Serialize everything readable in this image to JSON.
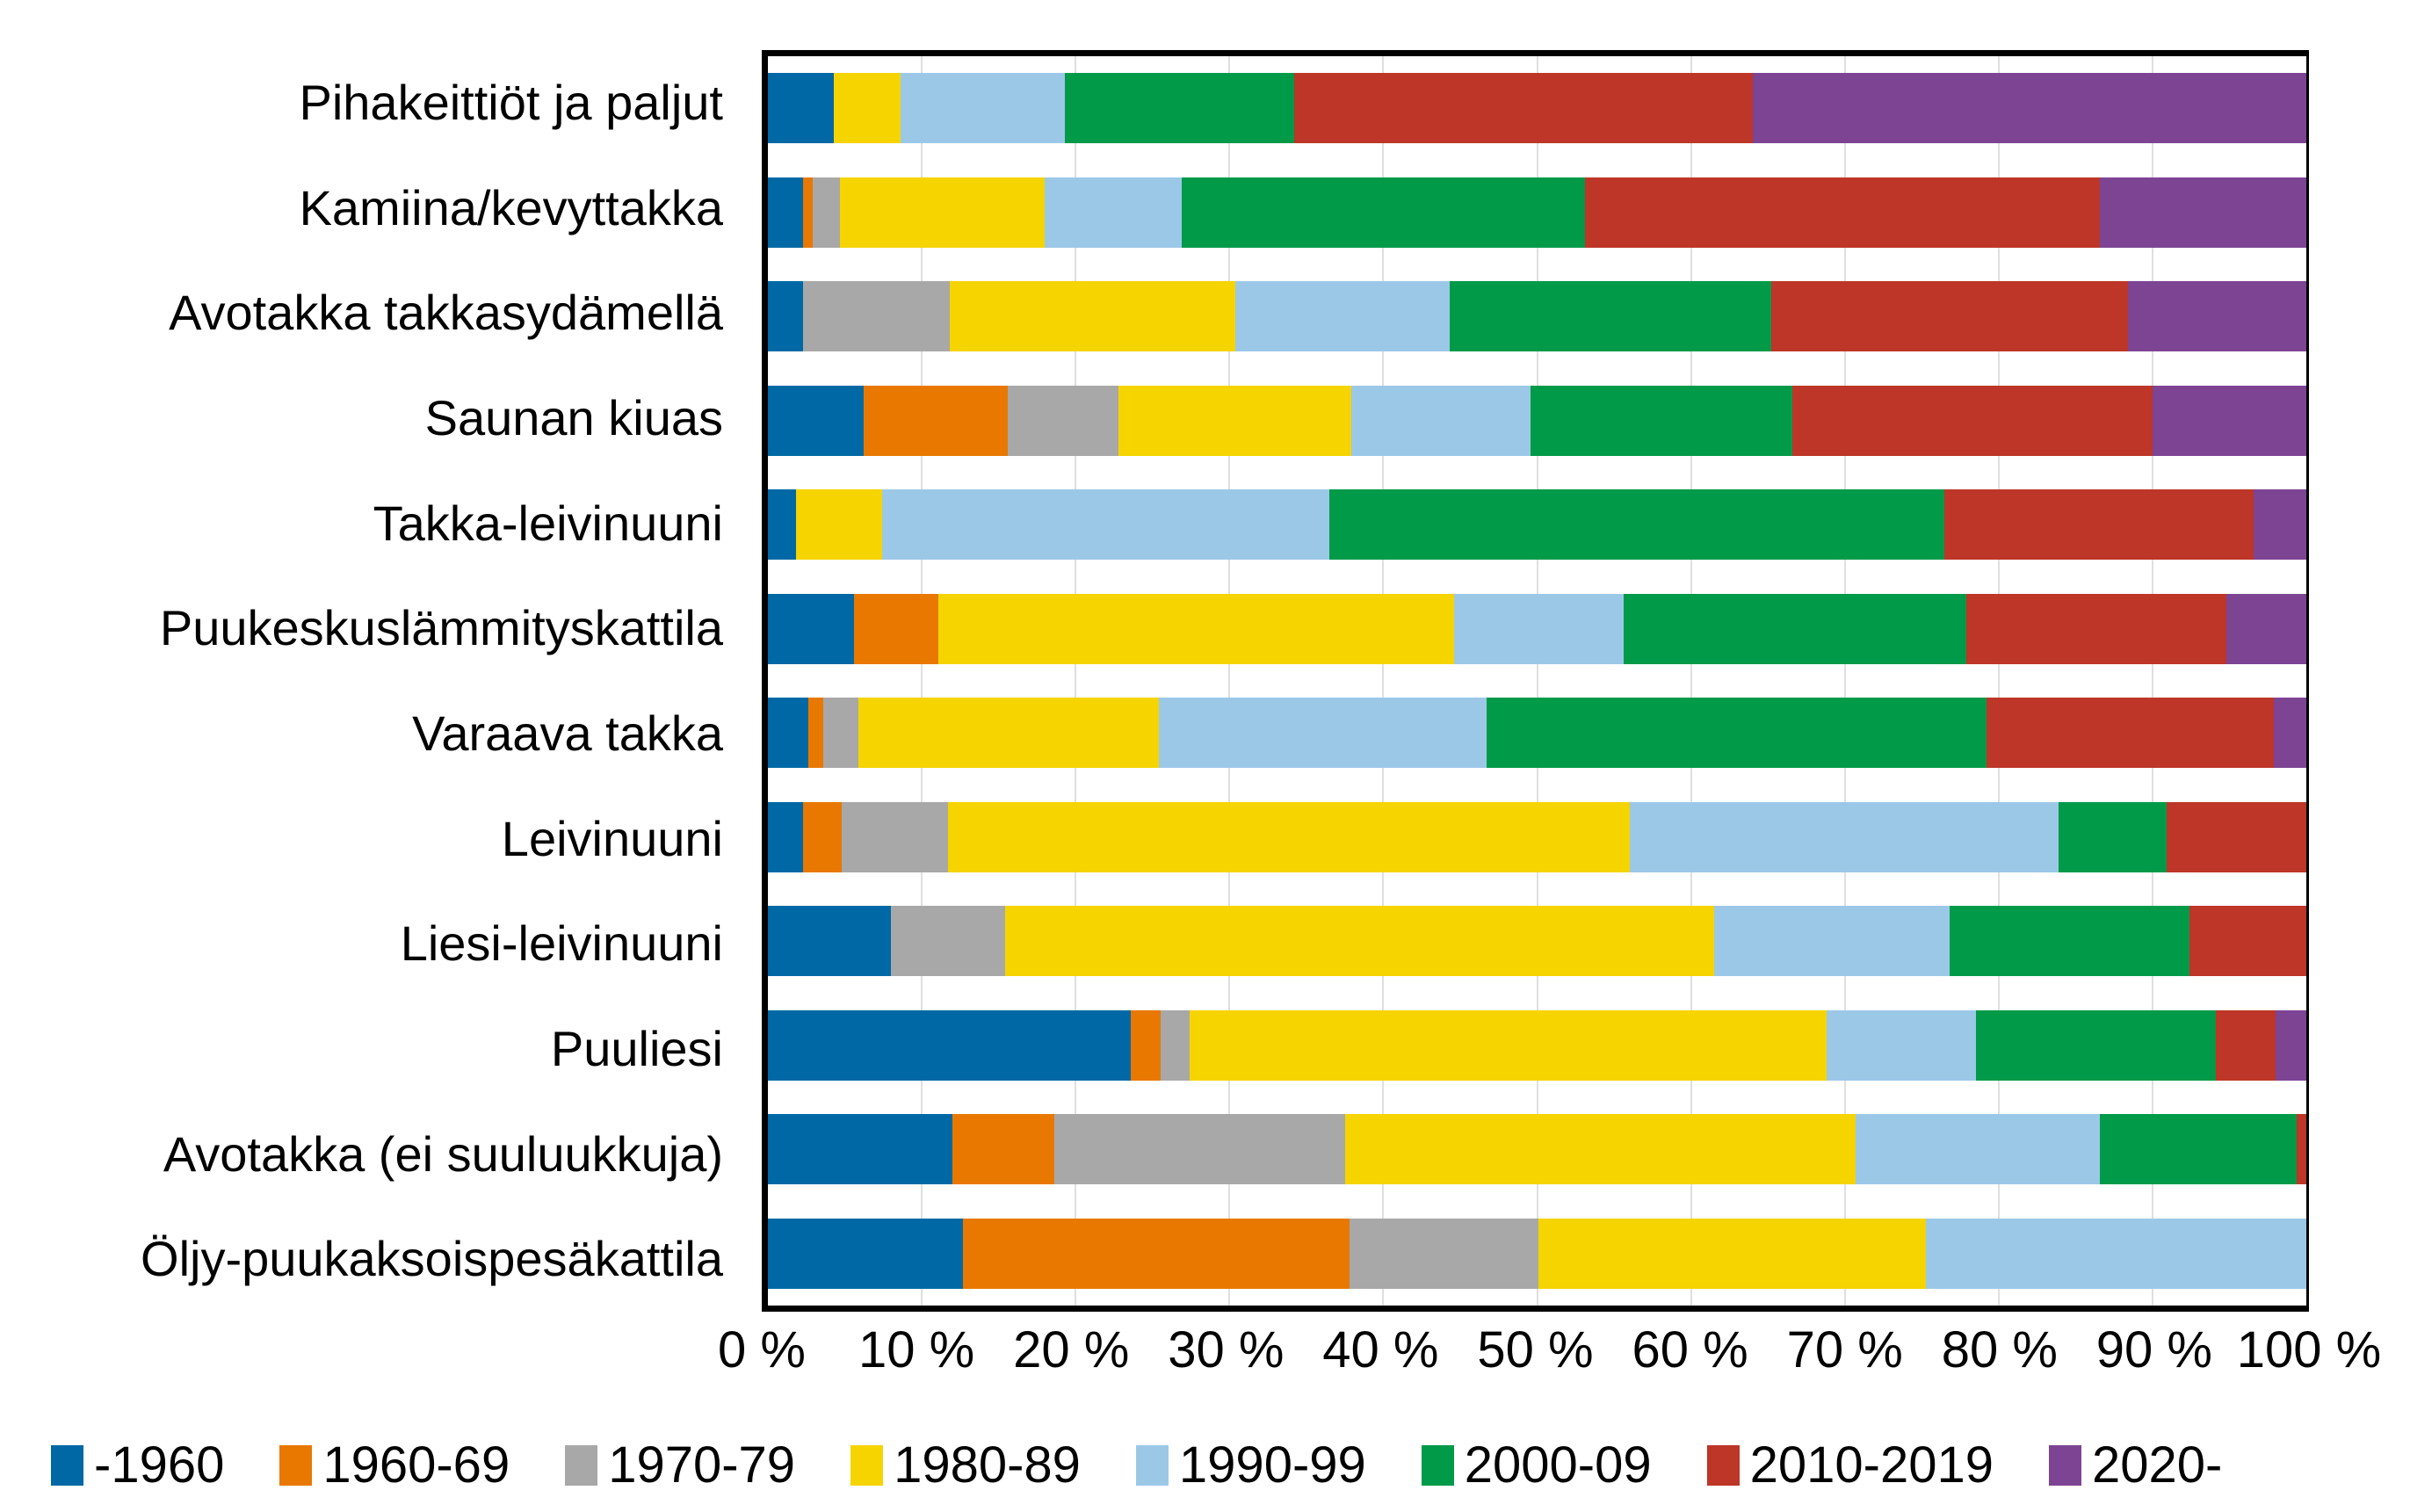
{
  "colors": {
    "background": "#FFFFFF",
    "axis": "#000000",
    "gridline": "#DFDFDF",
    "text": "#000000"
  },
  "chart_data": {
    "type": "bar",
    "orientation": "horizontal",
    "stacked": true,
    "title": "",
    "xlabel": "",
    "ylabel": "",
    "unit": "%",
    "xlim": [
      0,
      100
    ],
    "x_tick_step": 10,
    "x_tick_labels": [
      "0 %",
      "10 %",
      "20 %",
      "30 %",
      "40 %",
      "50 %",
      "60 %",
      "70 %",
      "80 %",
      "90 %",
      "100 %"
    ],
    "grid": true,
    "legend_position": "bottom",
    "categories": [
      "Pihakeittiöt ja paljut",
      "Kamiina/kevyttakka",
      "Avotakka takkasydämellä",
      "Saunan kiuas",
      "Takka-leivinuuni",
      "Puukeskuslämmityskattila",
      "Varaava takka",
      "Leivinuuni",
      "Liesi-leivinuuni",
      "Puuliesi",
      "Avotakka (ei suuluukkuja)",
      "Öljy-puukaksoispesäkattila"
    ],
    "series": [
      {
        "name": "-1960",
        "color": "#0069A5",
        "values": [
          4.3,
          2.3,
          2.3,
          6.2,
          1.8,
          5.6,
          2.6,
          2.3,
          8.0,
          23.6,
          12.0,
          12.7
        ]
      },
      {
        "name": "1960-69",
        "color": "#E87800",
        "values": [
          0,
          0.6,
          0,
          9.4,
          0,
          5.5,
          1.0,
          2.5,
          0,
          1.9,
          6.6,
          25.1
        ]
      },
      {
        "name": "1970-79",
        "color": "#A8A8A8",
        "values": [
          0,
          1.8,
          9.5,
          7.2,
          0,
          0,
          2.3,
          6.9,
          7.4,
          1.9,
          18.9,
          12.3
        ]
      },
      {
        "name": "1980-89",
        "color": "#F5D400",
        "values": [
          4.3,
          13.3,
          18.6,
          15.1,
          5.6,
          33.5,
          19.5,
          44.3,
          46.1,
          41.4,
          33.2,
          25.2
        ]
      },
      {
        "name": "1990-99",
        "color": "#9CC8E8",
        "values": [
          10.7,
          8.9,
          13.9,
          11.7,
          29.1,
          11.0,
          21.3,
          27.9,
          15.3,
          9.7,
          15.9,
          24.7
        ]
      },
      {
        "name": "2000-09",
        "color": "#009A49",
        "values": [
          14.9,
          26.2,
          20.9,
          17.0,
          40.0,
          22.3,
          32.5,
          7.0,
          15.6,
          15.6,
          12.8,
          0
        ]
      },
      {
        "name": "2010-2019",
        "color": "#BD3627",
        "values": [
          29.8,
          33.5,
          23.2,
          23.4,
          20.1,
          16.9,
          18.7,
          9.1,
          7.6,
          3.9,
          0.6,
          0
        ]
      },
      {
        "name": "2020-",
        "color": "#7D4494",
        "values": [
          36.0,
          13.4,
          11.6,
          10.0,
          3.4,
          5.2,
          2.1,
          0,
          0,
          2.0,
          0,
          0
        ]
      }
    ]
  }
}
